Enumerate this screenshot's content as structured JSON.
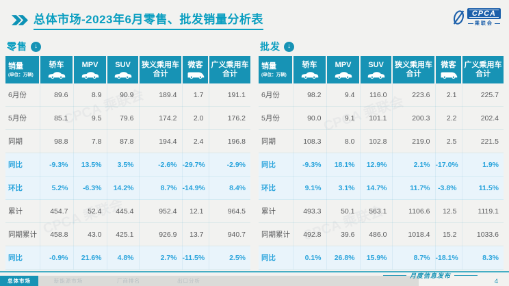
{
  "title": {
    "text": "总体市场-2023年6月零售、批发销量分析表"
  },
  "logo": {
    "acronym": "CPCA",
    "cn_name": "乘联会"
  },
  "watermark": {
    "text": "CPCA 乘联会"
  },
  "tables": {
    "retail": {
      "section_label": "零售",
      "header": {
        "title": "销量",
        "unit": "(单位：万辆)"
      },
      "columns": [
        {
          "label": "轿车",
          "icon": "car-icon"
        },
        {
          "label": "MPV",
          "icon": "car-icon"
        },
        {
          "label": "SUV",
          "icon": "car-icon"
        },
        {
          "label": "狭义乘用车",
          "label2": "合计"
        },
        {
          "label": "微客",
          "icon": "van-icon"
        },
        {
          "label": "广义乘用车",
          "label2": "合计"
        }
      ],
      "rows": [
        {
          "label": "6月份",
          "type": "normal",
          "values": [
            "89.6",
            "8.9",
            "90.9",
            "189.4",
            "1.7",
            "191.1"
          ]
        },
        {
          "label": "5月份",
          "type": "normal",
          "values": [
            "85.1",
            "9.5",
            "79.6",
            "174.2",
            "2.0",
            "176.2"
          ]
        },
        {
          "label": "同期",
          "type": "normal",
          "values": [
            "98.8",
            "7.8",
            "87.8",
            "194.4",
            "2.4",
            "196.8"
          ]
        },
        {
          "label": "同比",
          "type": "percent",
          "values": [
            "-9.3%",
            "13.5%",
            "3.5%",
            "-2.6%",
            "-29.7%",
            "-2.9%"
          ]
        },
        {
          "label": "环比",
          "type": "percent",
          "values": [
            "5.2%",
            "-6.3%",
            "14.2%",
            "8.7%",
            "-14.9%",
            "8.4%"
          ]
        },
        {
          "label": "累计",
          "type": "normal",
          "values": [
            "454.7",
            "52.4",
            "445.4",
            "952.4",
            "12.1",
            "964.5"
          ]
        },
        {
          "label": "同期累计",
          "type": "normal",
          "values": [
            "458.8",
            "43.0",
            "425.1",
            "926.9",
            "13.7",
            "940.7"
          ]
        },
        {
          "label": "同比",
          "type": "percent",
          "values": [
            "-0.9%",
            "21.6%",
            "4.8%",
            "2.7%",
            "-11.5%",
            "2.5%"
          ]
        }
      ]
    },
    "wholesale": {
      "section_label": "批发",
      "header": {
        "title": "销量",
        "unit": "(单位：万辆)"
      },
      "columns": [
        {
          "label": "轿车",
          "icon": "car-icon"
        },
        {
          "label": "MPV",
          "icon": "car-icon"
        },
        {
          "label": "SUV",
          "icon": "car-icon"
        },
        {
          "label": "狭义乘用车",
          "label2": "合计"
        },
        {
          "label": "微客",
          "icon": "van-icon"
        },
        {
          "label": "广义乘用车",
          "label2": "合计"
        }
      ],
      "rows": [
        {
          "label": "6月份",
          "type": "normal",
          "values": [
            "98.2",
            "9.4",
            "116.0",
            "223.6",
            "2.1",
            "225.7"
          ]
        },
        {
          "label": "5月份",
          "type": "normal",
          "values": [
            "90.0",
            "9.1",
            "101.1",
            "200.3",
            "2.2",
            "202.4"
          ]
        },
        {
          "label": "同期",
          "type": "normal",
          "values": [
            "108.3",
            "8.0",
            "102.8",
            "219.0",
            "2.5",
            "221.5"
          ]
        },
        {
          "label": "同比",
          "type": "percent",
          "values": [
            "-9.3%",
            "18.1%",
            "12.9%",
            "2.1%",
            "-17.0%",
            "1.9%"
          ]
        },
        {
          "label": "环比",
          "type": "percent",
          "values": [
            "9.1%",
            "3.1%",
            "14.7%",
            "11.7%",
            "-3.8%",
            "11.5%"
          ]
        },
        {
          "label": "累计",
          "type": "normal",
          "values": [
            "493.3",
            "50.1",
            "563.1",
            "1106.6",
            "12.5",
            "1119.1"
          ]
        },
        {
          "label": "同期累计",
          "type": "normal",
          "values": [
            "492.8",
            "39.6",
            "486.0",
            "1018.4",
            "15.2",
            "1033.6"
          ]
        },
        {
          "label": "同比",
          "type": "percent",
          "values": [
            "0.1%",
            "26.8%",
            "15.9%",
            "8.7%",
            "-18.1%",
            "8.3%"
          ]
        }
      ]
    }
  },
  "footer": {
    "tabs": [
      {
        "label": "总体市场",
        "active": true
      },
      {
        "label": "新能源市场",
        "active": false
      },
      {
        "label": "厂商排名",
        "active": false
      },
      {
        "label": "出口分析",
        "active": false
      }
    ],
    "release_label": "月度信息发布",
    "page_number": "4"
  },
  "colors": {
    "accent_teal": "#0a9ec0",
    "header_teal": "#1793b5",
    "percent_blue": "#2aa4dc",
    "logo_blue": "#1b5faa"
  }
}
